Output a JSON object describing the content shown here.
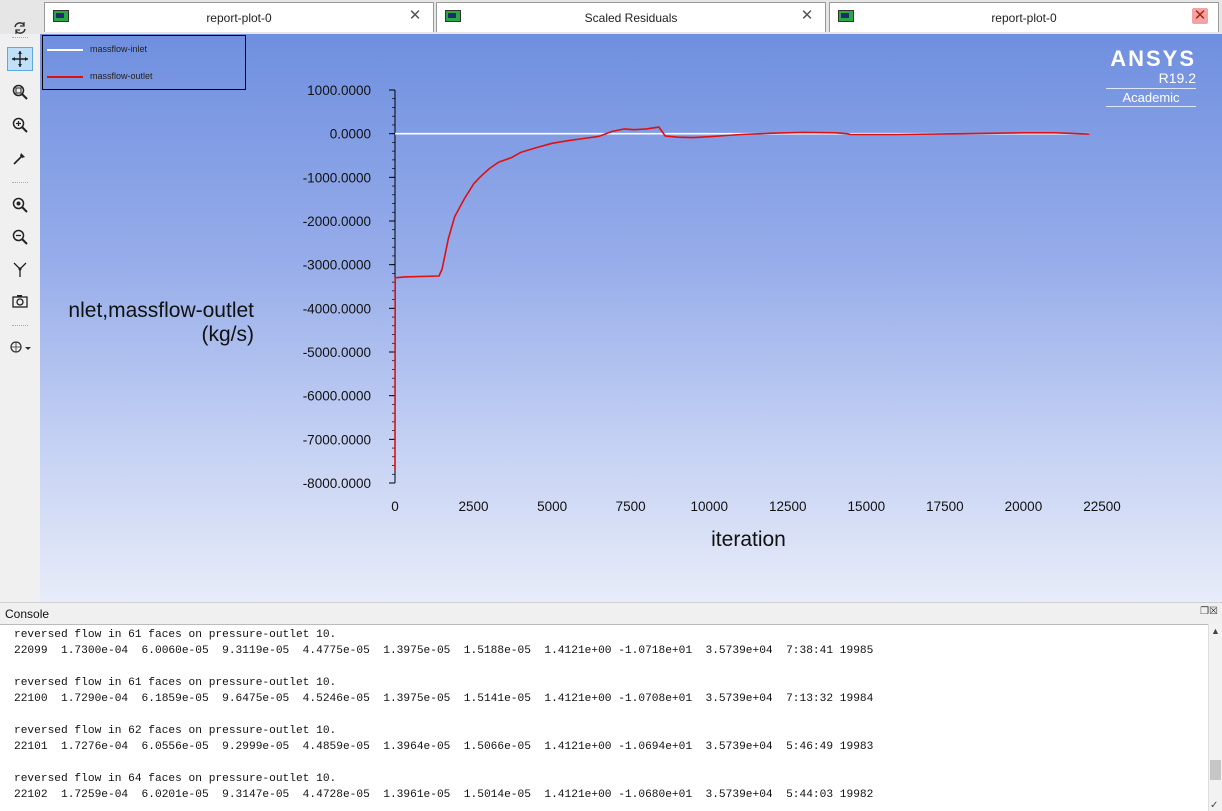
{
  "tabs": [
    {
      "label": "report-plot-0"
    },
    {
      "label": "Scaled Residuals"
    },
    {
      "label": "report-plot-0"
    }
  ],
  "toolbar": {
    "icons": [
      "rotate-icon",
      "pan-icon",
      "zoom-region-icon",
      "zoom-in-icon",
      "probe-icon",
      "fit-zoom-icon",
      "zoom-out-icon",
      "axes-icon",
      "snapshot-icon",
      "view-options-icon"
    ]
  },
  "logo": {
    "brand": "ANSYS",
    "version": "R19.2",
    "edition": "Academic"
  },
  "console": {
    "title": "Console",
    "lines": [
      "reversed flow in 61 faces on pressure-outlet 10.",
      "22099  1.7300e-04  6.0060e-05  9.3119e-05  4.4775e-05  1.3975e-05  1.5188e-05  1.4121e+00 -1.0718e+01  3.5739e+04  7:38:41 19985",
      "",
      "reversed flow in 61 faces on pressure-outlet 10.",
      "22100  1.7290e-04  6.1859e-05  9.6475e-05  4.5246e-05  1.3975e-05  1.5141e-05  1.4121e+00 -1.0708e+01  3.5739e+04  7:13:32 19984",
      "",
      "reversed flow in 62 faces on pressure-outlet 10.",
      "22101  1.7276e-04  6.0556e-05  9.2999e-05  4.4859e-05  1.3964e-05  1.5066e-05  1.4121e+00 -1.0694e+01  3.5739e+04  5:46:49 19983",
      "",
      "reversed flow in 64 faces on pressure-outlet 10.",
      "22102  1.7259e-04  6.0201e-05  9.3147e-05  4.4728e-05  1.3961e-05  1.5014e-05  1.4121e+00 -1.0680e+01  3.5739e+04  5:44:03 19982"
    ]
  },
  "chart_data": {
    "type": "line",
    "xlabel": "iteration",
    "ylabel": "nlet,massflow-outlet\n(kg/s)",
    "xlim": [
      0,
      22500
    ],
    "ylim": [
      -8000,
      1000
    ],
    "xticks": [
      "0",
      "2500",
      "5000",
      "7500",
      "10000",
      "12500",
      "15000",
      "17500",
      "20000",
      "22500"
    ],
    "yticks": [
      "1000.0000",
      "0.0000",
      "-1000.0000",
      "-2000.0000",
      "-3000.0000",
      "-4000.0000",
      "-5000.0000",
      "-6000.0000",
      "-7000.0000",
      "-8000.0000"
    ],
    "legend_placement": "top-left",
    "series": [
      {
        "name": "massflow-inlet",
        "color": "#ffffff",
        "x": [
          0,
          22100
        ],
        "y": [
          0,
          0
        ]
      },
      {
        "name": "massflow-outlet",
        "color": "#e01010",
        "x": [
          0,
          2,
          5,
          300,
          1400,
          1500,
          1700,
          1900,
          2200,
          2500,
          2700,
          3000,
          3300,
          3700,
          4000,
          4500,
          5000,
          5500,
          6000,
          6500,
          6900,
          7300,
          7600,
          8000,
          8400,
          8600,
          9000,
          9500,
          10000,
          11000,
          12000,
          13000,
          14000,
          14400,
          14500,
          16000,
          18000,
          20000,
          21000,
          22100
        ],
        "y": [
          -7700,
          -5000,
          -3300,
          -3280,
          -3260,
          -3100,
          -2400,
          -1900,
          -1500,
          -1150,
          -1000,
          -800,
          -650,
          -550,
          -430,
          -320,
          -220,
          -160,
          -110,
          -60,
          50,
          110,
          90,
          110,
          150,
          -50,
          -80,
          -90,
          -70,
          -20,
          10,
          30,
          20,
          0,
          -20,
          -20,
          0,
          20,
          20,
          -10
        ]
      }
    ]
  }
}
